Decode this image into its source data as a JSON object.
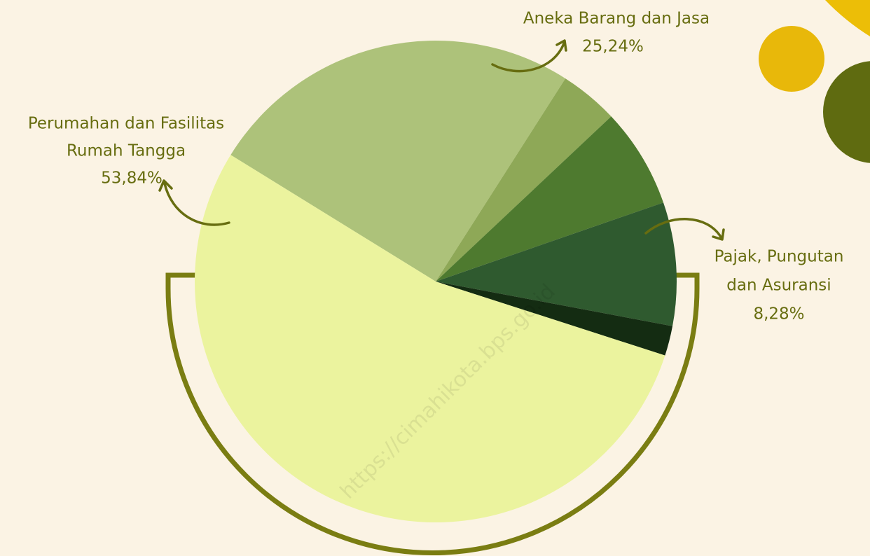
{
  "chart_data": {
    "type": "pie",
    "categories": [
      "Aneka Barang dan Jasa",
      null,
      null,
      [
        "Pajak, Pungutan",
        "dan Asuransi"
      ],
      null,
      [
        "Perumahan dan Fasilitas",
        "Rumah Tangga"
      ]
    ],
    "values": [
      25.24,
      3.94,
      6.7,
      8.28,
      2.0,
      53.84
    ],
    "value_labels": [
      "25,24%",
      null,
      null,
      "8,28%",
      null,
      "53,84%"
    ],
    "colors": [
      "#adc27a",
      "#8ea857",
      "#4e7a2f",
      "#2f5a2f",
      "#142c12",
      "#ebf39e"
    ],
    "watermark": "https://cimahikota.bps.go.id"
  }
}
